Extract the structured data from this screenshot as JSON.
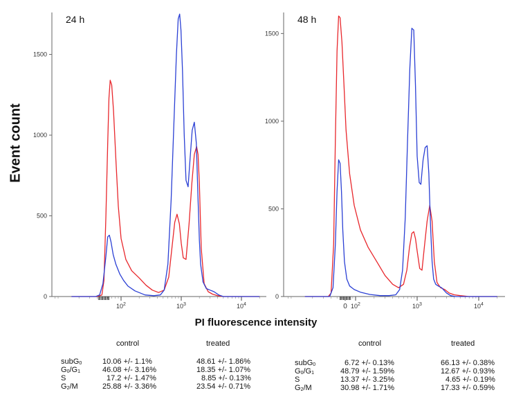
{
  "chart_data": {
    "type": "line",
    "y_axis_label": "Event count",
    "x_axis_label": "PI fluorescence intensity",
    "x_scale": "log",
    "panels": [
      {
        "title": "24 h",
        "ylim": [
          0,
          1760
        ],
        "yticks": [
          0,
          500,
          1000,
          1500
        ],
        "xticks": [
          100,
          1000,
          10000
        ],
        "series": [
          {
            "name": "",
            "color": "#e8262b",
            "x": [
              15,
              40,
              48,
              52,
              56,
              60,
              63,
              66,
              70,
              75,
              82,
              90,
              100,
              120,
              150,
              200,
              260,
              330,
              420,
              520,
              620,
              700,
              780,
              850,
              930,
              1000,
              1080,
              1200,
              1350,
              1500,
              1650,
              1800,
              1900,
              2000,
              2150,
              2400,
              2800,
              3300,
              4000,
              5000,
              7000,
              20000
            ],
            "y": [
              0,
              0,
              10,
              100,
              500,
              950,
              1230,
              1340,
              1310,
              1150,
              850,
              560,
              360,
              230,
              160,
              115,
              70,
              40,
              25,
              40,
              120,
              300,
              460,
              510,
              450,
              330,
              240,
              230,
              450,
              700,
              880,
              930,
              880,
              700,
              300,
              80,
              30,
              15,
              5,
              0,
              0,
              0
            ]
          },
          {
            "name": "",
            "color": "#2a3fd4",
            "x": [
              15,
              38,
              44,
              50,
              56,
              60,
              64,
              68,
              74,
              82,
              95,
              110,
              130,
              170,
              250,
              350,
              450,
              520,
              600,
              680,
              760,
              830,
              890,
              940,
              990,
              1050,
              1120,
              1200,
              1300,
              1400,
              1520,
              1650,
              1780,
              1900,
              2000,
              2100,
              2300,
              2600,
              3000,
              3500,
              4200,
              5000,
              7000,
              20000
            ],
            "y": [
              0,
              0,
              10,
              80,
              250,
              370,
              380,
              340,
              260,
              200,
              140,
              100,
              65,
              35,
              10,
              5,
              10,
              40,
              200,
              600,
              1100,
              1500,
              1720,
              1750,
              1650,
              1400,
              1000,
              720,
              680,
              850,
              1030,
              1080,
              950,
              600,
              350,
              200,
              90,
              50,
              40,
              30,
              10,
              0,
              0,
              0
            ]
          }
        ]
      },
      {
        "title": "48 h",
        "ylim": [
          0,
          1620
        ],
        "yticks": [
          0,
          500,
          1000,
          1500
        ],
        "xticks": [
          0,
          100,
          1000,
          10000
        ],
        "series": [
          {
            "name": "",
            "color": "#e8262b",
            "x": [
              15,
              36,
              40,
              44,
              47,
              50,
              53,
              56,
              60,
              65,
              70,
              80,
              95,
              120,
              160,
              220,
              300,
              400,
              500,
              600,
              680,
              750,
              820,
              880,
              940,
              1000,
              1100,
              1200,
              1300,
              1450,
              1600,
              1750,
              1900,
              2100,
              2400,
              2800,
              3300,
              4000,
              5000,
              7000,
              20000
            ],
            "y": [
              0,
              0,
              20,
              300,
              900,
              1400,
              1600,
              1590,
              1450,
              1200,
              950,
              700,
              520,
              380,
              280,
              200,
              120,
              70,
              50,
              70,
              150,
              280,
              360,
              370,
              330,
              260,
              160,
              150,
              270,
              430,
              520,
              430,
              200,
              80,
              50,
              40,
              20,
              10,
              5,
              0,
              0
            ]
          },
          {
            "name": "",
            "color": "#2a3fd4",
            "x": [
              15,
              38,
              43,
              47,
              50,
              53,
              56,
              59,
              62,
              66,
              72,
              80,
              95,
              120,
              170,
              250,
              350,
              450,
              520,
              580,
              640,
              700,
              760,
              820,
              880,
              940,
              1000,
              1080,
              1150,
              1250,
              1350,
              1450,
              1550,
              1650,
              1750,
              1850,
              2000,
              2200,
              2500,
              3000,
              3500,
              4200,
              5000,
              7000,
              20000
            ],
            "y": [
              0,
              0,
              50,
              300,
              600,
              780,
              760,
              600,
              380,
              200,
              100,
              60,
              40,
              25,
              12,
              5,
              5,
              10,
              40,
              150,
              450,
              900,
              1300,
              1530,
              1520,
              1200,
              800,
              650,
              640,
              780,
              850,
              860,
              700,
              400,
              200,
              100,
              70,
              60,
              50,
              20,
              5,
              0,
              0,
              0,
              0
            ]
          }
        ]
      }
    ]
  },
  "tables": [
    {
      "headers": [
        "control",
        "treated"
      ],
      "rows": [
        {
          "label": "subG0",
          "control": "10.06 +/- 1.1%",
          "treated": "48.61 +/- 1.86%"
        },
        {
          "label": "G0/G1",
          "control": "46.08 +/- 3.16%",
          "treated": "18.35 +/- 1.07%"
        },
        {
          "label": "S",
          "control": "17.2 +/- 1.47%",
          "treated": "8.85 +/- 0.13%"
        },
        {
          "label": "G2/M",
          "control": "25.88 +/- 3.36%",
          "treated": "23.54 +/- 0.71%"
        }
      ]
    },
    {
      "headers": [
        "control",
        "treated"
      ],
      "rows": [
        {
          "label": "subG0",
          "control": "6.72 +/- 0.13%",
          "treated": "66.13 +/- 0.38%"
        },
        {
          "label": "G0/G1",
          "control": "48.79 +/- 1.59%",
          "treated": "12.67 +/- 0.93%"
        },
        {
          "label": "S",
          "control": "13.37 +/- 3.25%",
          "treated": "4.65 +/- 0.19%"
        },
        {
          "label": "G2/M",
          "control": "30.98 +/- 1.71%",
          "treated": "17.33 +/- 0.59%"
        }
      ]
    }
  ]
}
